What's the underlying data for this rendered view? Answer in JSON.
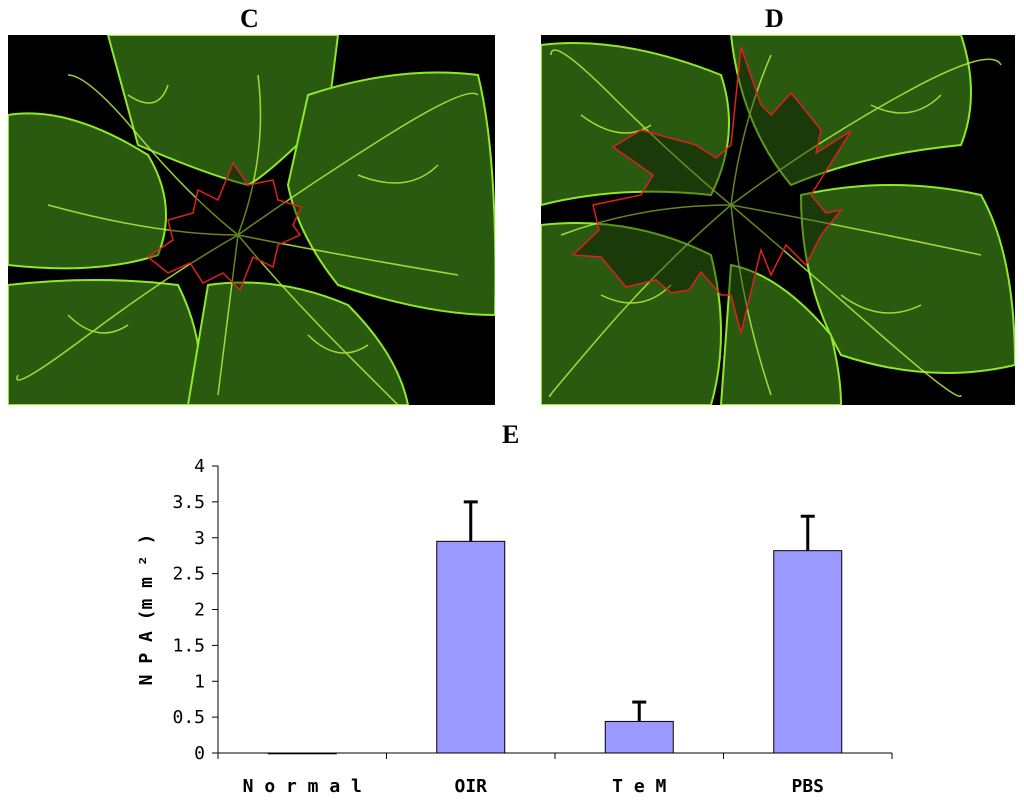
{
  "panels": {
    "c": {
      "label": "C"
    },
    "d": {
      "label": "D"
    },
    "e": {
      "label": "E"
    }
  },
  "colors": {
    "vessel": "#7ee01a",
    "vessel_bright": "#d8f040",
    "vessel_dim": "#2f6d12",
    "outline": "#e02020",
    "bar": "#9999ff"
  },
  "chart_data": {
    "type": "bar",
    "categories": [
      "N o r m a l",
      "OIR",
      "T e M",
      "PBS"
    ],
    "values": [
      0.0,
      2.95,
      0.44,
      2.82
    ],
    "error_upper": [
      0.0,
      0.55,
      0.27,
      0.48
    ],
    "ylabel": "N P A (m m ² )",
    "ylim": [
      0,
      4
    ],
    "yticks": [
      "0",
      "0.5",
      "1",
      "1.5",
      "2",
      "2.5",
      "3",
      "3.5",
      "4"
    ],
    "ytick_values": [
      0,
      0.5,
      1,
      1.5,
      2,
      2.5,
      3,
      3.5,
      4
    ],
    "grid": false,
    "legend": "none"
  }
}
